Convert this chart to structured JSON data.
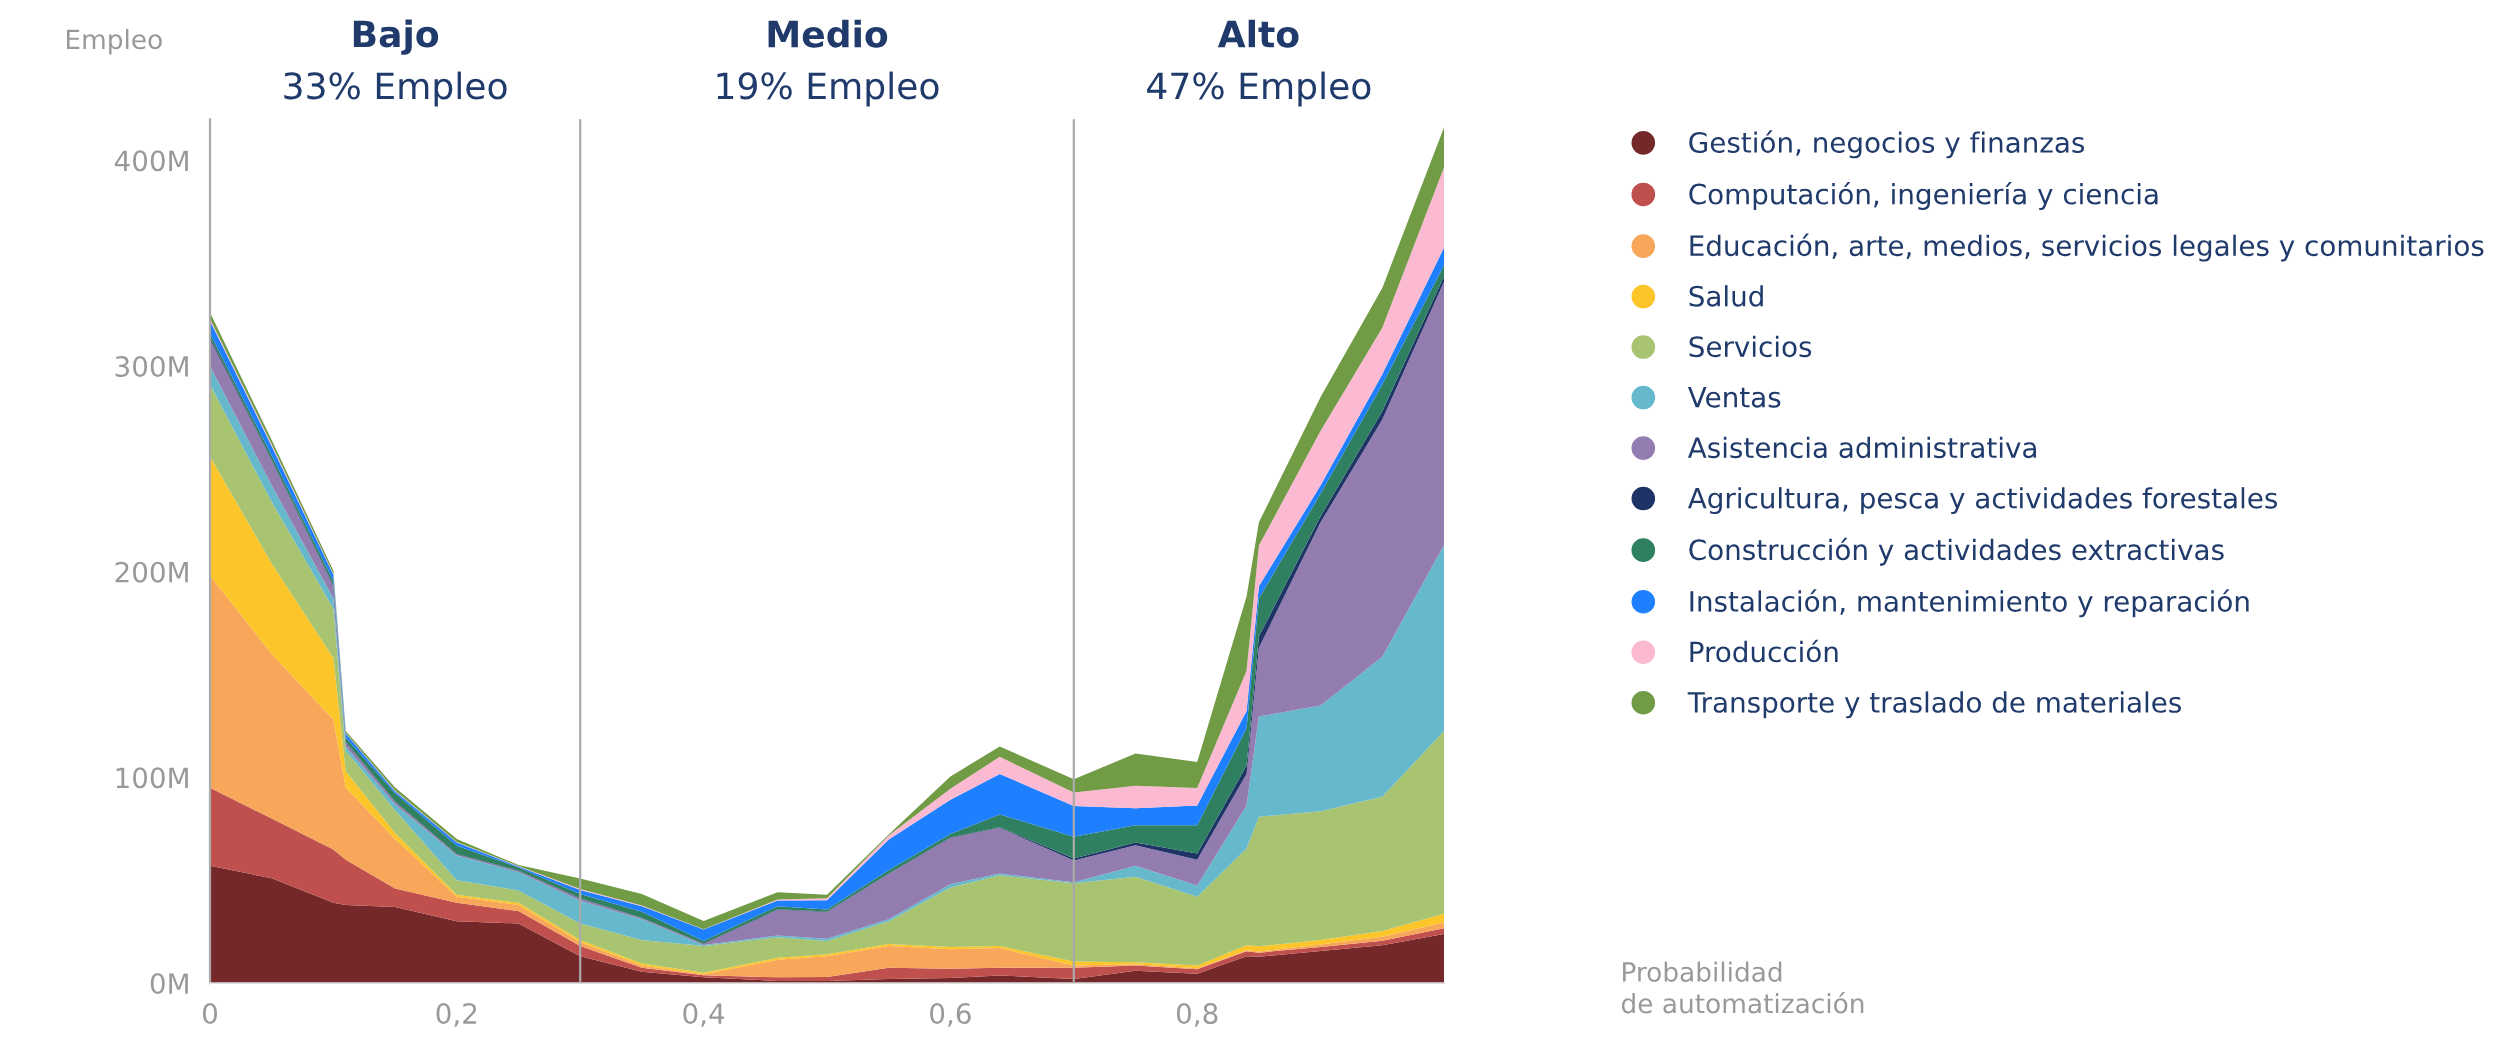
{
  "chart_data": {
    "type": "area",
    "stacked": true,
    "ylabel": "Empleo",
    "annotations": [
      "Bajo",
      "33% Empleo",
      "Medio",
      "19% Empleo",
      "Alto",
      "47% Empleo",
      "Probabilidad\nde automatización"
    ],
    "x": [
      0,
      0.05,
      0.1,
      0.11,
      0.15,
      0.2,
      0.25,
      0.3,
      0.35,
      0.4,
      0.46,
      0.5,
      0.55,
      0.6,
      0.64,
      0.7,
      0.75,
      0.8,
      0.84,
      0.85,
      0.9,
      0.95,
      1.0
    ],
    "xlim": [
      0,
      1
    ],
    "xticks": [
      0,
      {
        "value": 0.2,
        "label": "0,2"
      },
      {
        "value": 0.4,
        "label": "0,4"
      },
      {
        "value": 0.6,
        "label": "0,6"
      },
      {
        "value": 0.8,
        "label": "0,8"
      }
    ],
    "ylim": [
      0,
      420
    ],
    "yticks": [
      {
        "value": 0,
        "label": "0M"
      },
      {
        "value": 100,
        "label": "100M"
      },
      {
        "value": 200,
        "label": "200M"
      },
      {
        "value": 300,
        "label": "300M"
      },
      {
        "value": 400,
        "label": "400M"
      }
    ],
    "ref_lines": [
      {
        "axis": "x",
        "value": 0.3,
        "color": "#aaaaaa"
      },
      {
        "axis": "x",
        "value": 0.7,
        "color": "#aaaaaa"
      }
    ],
    "legend": "right",
    "grid": false,
    "series": [
      {
        "name": "Gestión, negocios y finanzas",
        "color": "#74282a",
        "values": [
          57,
          51,
          39,
          38,
          37,
          30,
          29,
          13,
          5.5,
          2.8,
          1,
          1,
          2,
          2.5,
          3.7,
          2,
          6,
          4.5,
          13,
          12.8,
          15.6,
          18.4,
          23.9
        ]
      },
      {
        "name": "Computación, ingeniería y ciencia",
        "color": "#c0504d",
        "values": [
          38,
          29,
          26,
          22,
          9,
          9,
          6,
          5,
          2,
          1,
          1.8,
          2,
          5.5,
          4.5,
          3.8,
          5.5,
          2.6,
          2.2,
          2.5,
          2,
          2,
          2.2,
          2.8
        ]
      },
      {
        "name": "Educación, arte, medios, servicios legales y comunitarios",
        "color": "#f7a65a",
        "values": [
          103,
          80,
          63,
          35,
          24,
          3,
          3,
          2,
          1,
          0.5,
          8.5,
          10,
          10.5,
          9.5,
          9.5,
          1,
          0.5,
          0.5,
          0.5,
          0.5,
          1.1,
          1.9,
          2.8
        ]
      },
      {
        "name": "Salud",
        "color": "#fcc52a",
        "values": [
          58,
          44,
          30,
          8,
          3,
          1,
          1,
          1,
          1,
          0.7,
          1,
          1,
          1,
          1,
          1,
          2,
          1,
          1.4,
          2.4,
          2.6,
          2.2,
          2.8,
          4.2
        ]
      },
      {
        "name": "Servicios",
        "color": "#a8c470",
        "values": [
          35,
          30,
          24,
          10,
          11,
          7,
          6,
          8,
          11.5,
          13,
          10,
          6.5,
          11,
          29,
          34.4,
          38,
          41.6,
          33.4,
          47,
          63,
          62.7,
          65.3,
          88.9
        ]
      },
      {
        "name": "Ventas",
        "color": "#66b8cc",
        "values": [
          9,
          8,
          5,
          2,
          3,
          12,
          9,
          11,
          10,
          0.5,
          0.8,
          1,
          1,
          1.5,
          0.9,
          0.5,
          5.3,
          5.5,
          20.9,
          48.7,
          51.4,
          68.1,
          90.4
        ]
      },
      {
        "name": "Asistencia administrativa",
        "color": "#937cb0",
        "values": [
          13,
          12,
          6,
          2,
          1,
          0.5,
          0.5,
          1,
          0.5,
          0.5,
          12.5,
          13,
          22,
          22.5,
          22.2,
          10.6,
          10,
          12.5,
          15.3,
          33.4,
          89,
          115.3,
          128
        ]
      },
      {
        "name": "Agricultura, pesca y actividades forestales",
        "color": "#1e3466",
        "values": [
          1,
          0.5,
          0.5,
          0.3,
          0.3,
          0.3,
          0.2,
          0.3,
          0.2,
          0.2,
          0.3,
          0.3,
          0.3,
          0.3,
          0.3,
          1,
          1.4,
          3,
          4.2,
          5.5,
          3,
          4,
          2.6
        ]
      },
      {
        "name": "Construcción y actividades extractivas",
        "color": "#2e8060",
        "values": [
          2,
          2,
          2,
          2,
          4,
          4,
          1.5,
          2,
          3,
          1.3,
          1.5,
          1,
          1.5,
          1.7,
          6.2,
          10.5,
          8.3,
          13.7,
          18.2,
          18.5,
          11,
          13,
          5.4
        ]
      },
      {
        "name": "Instalación, mantenimiento y reparación",
        "color": "#1f80ff",
        "values": [
          6,
          4.5,
          3,
          2,
          1,
          1.5,
          0.5,
          2,
          2.7,
          5.5,
          2.8,
          4.5,
          15,
          16.6,
          19.7,
          15,
          8.3,
          9.7,
          8.3,
          6,
          4,
          5,
          8.6
        ]
      },
      {
        "name": "Producción",
        "color": "#fcb9d2",
        "values": [
          1,
          1,
          0.5,
          0.3,
          0.3,
          0.3,
          0.2,
          0.5,
          0.3,
          0.2,
          0.4,
          1,
          2,
          5.4,
          8.3,
          6.5,
          11,
          8.4,
          19.6,
          19.7,
          26.6,
          22.6,
          38.9
        ]
      },
      {
        "name": "Transporte y traslado de materiales",
        "color": "#719b45",
        "values": [
          3,
          2,
          1.5,
          1,
          1.5,
          1.5,
          0.5,
          5,
          5.6,
          4,
          3.6,
          1.7,
          0.5,
          6,
          5,
          6.5,
          15.6,
          12.7,
          36.1,
          11.3,
          16.4,
          19.4,
          19.5
        ]
      }
    ]
  }
}
